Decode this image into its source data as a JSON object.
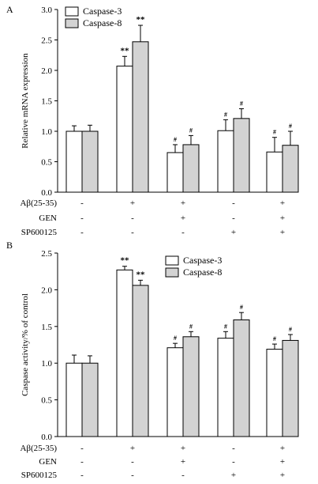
{
  "chart_data": [
    {
      "panel_label": "A",
      "type": "bar",
      "ylabel": "Relative mRNA expression",
      "ylim": [
        0,
        3.0
      ],
      "yticks": [
        "0.0",
        "0.5",
        "1.0",
        "1.5",
        "2.0",
        "2.5",
        "3.0"
      ],
      "legend_position": "top-left",
      "series": [
        {
          "name": "Caspase-3",
          "color": "#ffffff",
          "values": [
            1.0,
            2.07,
            0.65,
            1.01,
            0.66
          ],
          "errors": [
            0.09,
            0.16,
            0.13,
            0.18,
            0.24
          ],
          "marks": [
            "",
            "**",
            "#",
            "#",
            "#"
          ]
        },
        {
          "name": "Caspase-8",
          "color": "#d3d3d3",
          "values": [
            1.0,
            2.47,
            0.78,
            1.21,
            0.77
          ],
          "errors": [
            0.1,
            0.27,
            0.15,
            0.16,
            0.23
          ],
          "marks": [
            "",
            "**",
            "#",
            "#",
            "#"
          ]
        }
      ],
      "treatments": [
        {
          "label": "Aβ(25-35)",
          "values": [
            "-",
            "+",
            "+",
            "-",
            "+"
          ]
        },
        {
          "label": "GEN",
          "values": [
            "-",
            "-",
            "+",
            "-",
            "+"
          ]
        },
        {
          "label": "SP600125",
          "values": [
            "-",
            "-",
            "-",
            "+",
            "+"
          ]
        }
      ]
    },
    {
      "panel_label": "B",
      "type": "bar",
      "ylabel": "Caspase activity/% of control",
      "ylim": [
        0,
        2.5
      ],
      "yticks": [
        "0.0",
        "0.5",
        "1.0",
        "1.5",
        "2.0",
        "2.5"
      ],
      "legend_position": "top-right",
      "series": [
        {
          "name": "Caspase-3",
          "color": "#ffffff",
          "values": [
            1.0,
            2.27,
            1.21,
            1.34,
            1.19
          ],
          "errors": [
            0.11,
            0.05,
            0.06,
            0.09,
            0.07
          ],
          "marks": [
            "",
            "**",
            "#",
            "#",
            "#"
          ]
        },
        {
          "name": "Caspase-8",
          "color": "#d3d3d3",
          "values": [
            1.0,
            2.06,
            1.36,
            1.59,
            1.31
          ],
          "errors": [
            0.1,
            0.07,
            0.07,
            0.1,
            0.08
          ],
          "marks": [
            "",
            "**",
            "#",
            "#",
            "#"
          ]
        }
      ],
      "treatments": [
        {
          "label": "Aβ(25-35)",
          "values": [
            "-",
            "+",
            "+",
            "-",
            "+"
          ]
        },
        {
          "label": "GEN",
          "values": [
            "-",
            "-",
            "+",
            "-",
            "+"
          ]
        },
        {
          "label": "SP600125",
          "values": [
            "-",
            "-",
            "-",
            "+",
            "+"
          ]
        }
      ]
    }
  ]
}
